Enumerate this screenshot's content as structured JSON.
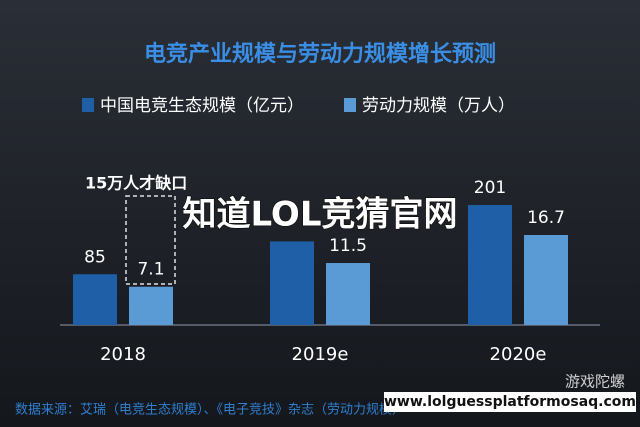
{
  "chart_data": {
    "type": "bar",
    "title": "电竞产业规模与劳动力规模增长预测",
    "categories": [
      "2018",
      "2019e",
      "2020e"
    ],
    "series": [
      {
        "name": "中国电竞生态规模（亿元）",
        "color": "#1f5fa8",
        "values": [
          85,
          140,
          201
        ],
        "value_labels": [
          "85",
          null,
          "201"
        ]
      },
      {
        "name": "劳动力规模（万人）",
        "color": "#5b9bd5",
        "values": [
          7.1,
          11.5,
          16.7
        ]
      }
    ],
    "annotation": "15万人才缺口",
    "overlay": "知道LOL竞猜官网",
    "watermark": "游戏陀螺",
    "url": "www.lolguessplatformosaq.com",
    "source": "数据来源：艾瑞（电竞生态规模）、《电子竞技》杂志（劳动力规模）"
  }
}
